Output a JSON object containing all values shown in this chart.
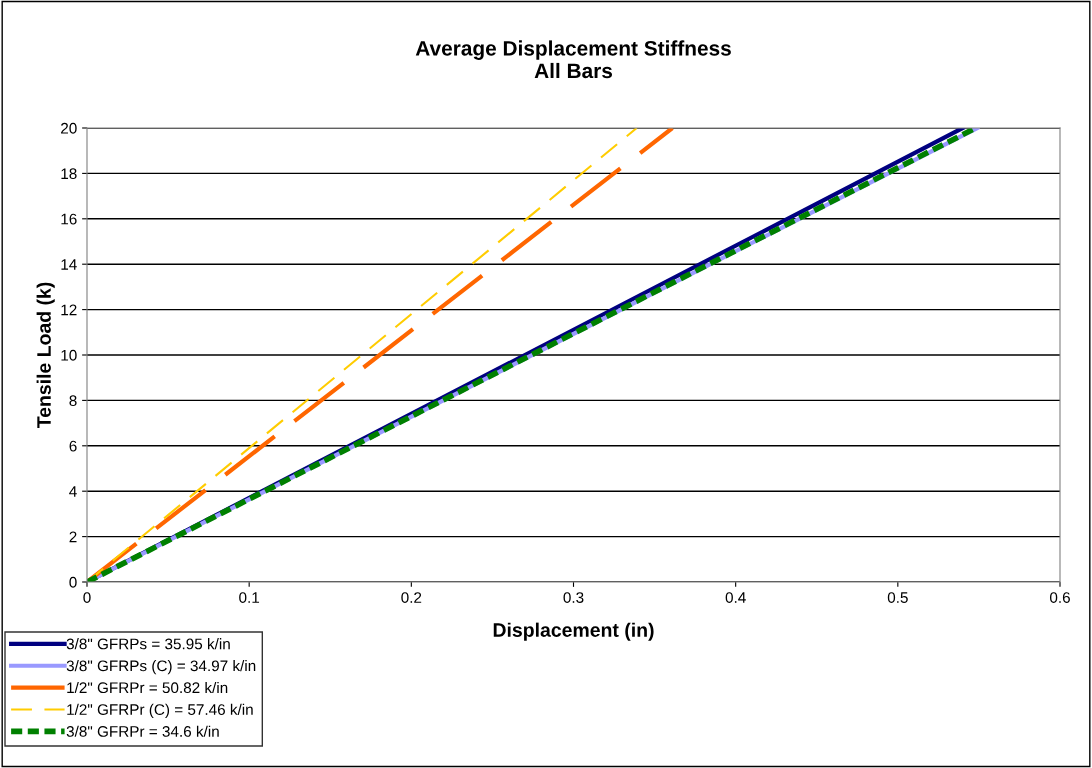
{
  "chart_data": {
    "type": "line",
    "title": "Average Displacement Stiffness\nAll Bars",
    "xlabel": "Displacement (in)",
    "ylabel": "Tensile Load (k)",
    "xlim": [
      0,
      0.6
    ],
    "ylim": [
      0,
      20
    ],
    "xticks": [
      0,
      0.1,
      0.2,
      0.3,
      0.4,
      0.5,
      0.6
    ],
    "yticks": [
      0,
      2,
      4,
      6,
      8,
      10,
      12,
      14,
      16,
      18,
      20
    ],
    "grid": "y",
    "legend": "bottom left",
    "marker": "none",
    "series": [
      {
        "name": "3/8\" GFRPs = 35.95 k/in",
        "color": "#000080",
        "x": [
          0,
          0.54
        ],
        "values": [
          0,
          20
        ],
        "line_style": "solid"
      },
      {
        "name": "3/8\" GFRPs (C) = 34.97 k/in",
        "color": "#9999ff",
        "x": [
          0,
          0.549
        ],
        "values": [
          0,
          20
        ],
        "line_style": "solid"
      },
      {
        "name": "1/2\" GFRPr = 50.82 k/in",
        "color": "#ff6600",
        "x": [
          0,
          0.361
        ],
        "values": [
          0,
          20
        ],
        "line_style": "dashed"
      },
      {
        "name": "1/2\" GFRPr (C) = 57.46 k/in",
        "color": "#ffcc00",
        "x": [
          0,
          0.339
        ],
        "values": [
          0,
          20
        ],
        "line_style": "dashed"
      },
      {
        "name": "3/8\" GFRPr = 34.6 k/in",
        "color": "#008000",
        "x": [
          0,
          0.548
        ],
        "values": [
          0,
          20
        ],
        "line_style": "dotted"
      }
    ]
  }
}
